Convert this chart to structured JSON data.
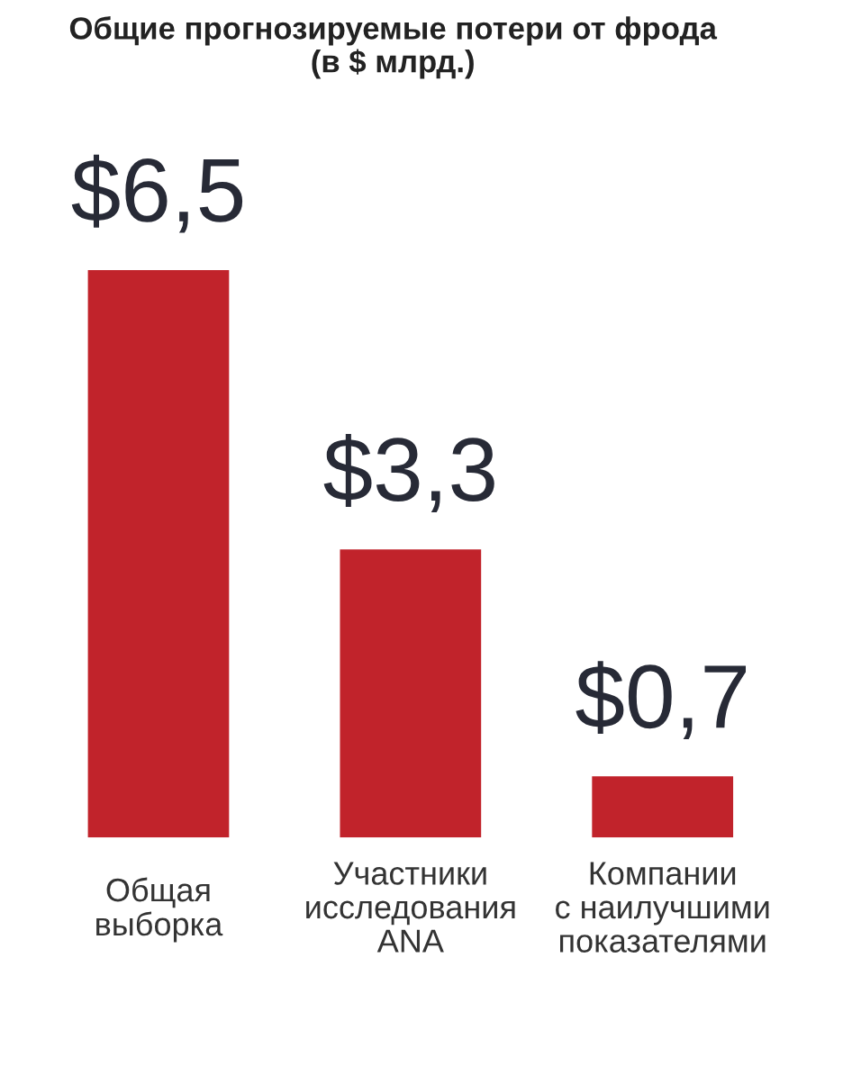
{
  "chart_data": {
    "type": "bar",
    "title": "Общие прогнозируемые потери от фрода\n(в $ млрд.)",
    "categories": [
      "Общая\nвыборка",
      "Участники\nисследования\nANA",
      "Компании\nс наилучшими\nпоказателями"
    ],
    "values": [
      6.5,
      3.3,
      0.7
    ],
    "value_labels": [
      "$6,5",
      "$3,3",
      "$0,7"
    ],
    "color": "#c1232b",
    "tick_labels": "x"
  }
}
